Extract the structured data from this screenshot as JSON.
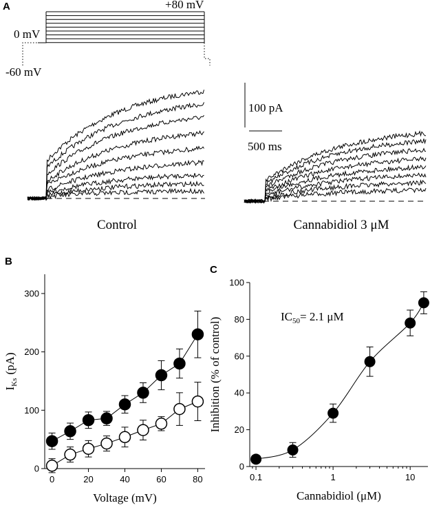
{
  "panel_a": {
    "label": "A",
    "protocol_top": "+80 mV",
    "protocol_hold": "0 mV",
    "protocol_base": "-60 mV",
    "scale_current": "100 pA",
    "scale_time": "500 ms",
    "conditions": [
      "Control",
      "Cannabidiol 3 μM"
    ]
  },
  "chart_data": [
    {
      "type": "line",
      "panel": "B",
      "xlabel": "Voltage (mV)",
      "ylabel": "I",
      "ylabel_sub": "Ks",
      "ylabel_unit": "(pA)",
      "x": [
        0,
        10,
        20,
        30,
        40,
        50,
        60,
        70,
        80
      ],
      "xlim": [
        -4,
        84
      ],
      "xticks": [
        0,
        20,
        40,
        60,
        80
      ],
      "ylim": [
        0,
        333
      ],
      "yticks": [
        0,
        100,
        200,
        300
      ],
      "series": [
        {
          "color": "#000000",
          "marker_fill": "#000000",
          "values": [
            47,
            64,
            83,
            86,
            110,
            130,
            160,
            180,
            230
          ],
          "errors": [
            14,
            14,
            14,
            12,
            15,
            17,
            25,
            25,
            40
          ]
        },
        {
          "color": "#000000",
          "marker_fill": "#ffffff",
          "values": [
            5,
            24,
            34,
            43,
            54,
            66,
            77,
            102,
            115
          ],
          "errors": [
            12,
            13,
            14,
            13,
            17,
            17,
            12,
            28,
            33
          ]
        }
      ]
    },
    {
      "type": "scatter",
      "panel": "C",
      "xlabel": "Cannabidiol (μM)",
      "ylabel": "Inhibition (% of control)",
      "annotation": {
        "main": "IC",
        "sub": "50",
        "rest": "= 2.1 μM"
      },
      "xscale": "log",
      "x": [
        0.1,
        0.3,
        1,
        3,
        10,
        15
      ],
      "values": [
        4,
        9,
        29,
        57,
        78,
        89
      ],
      "errors": [
        2,
        4,
        5,
        8,
        7,
        6
      ],
      "color": "#000000",
      "fit_curve": true,
      "xlim": [
        0.083,
        17
      ],
      "xticks": [
        0.1,
        1,
        10
      ],
      "ylim": [
        0,
        100
      ],
      "yticks": [
        0,
        20,
        40,
        60,
        80,
        100
      ]
    }
  ]
}
